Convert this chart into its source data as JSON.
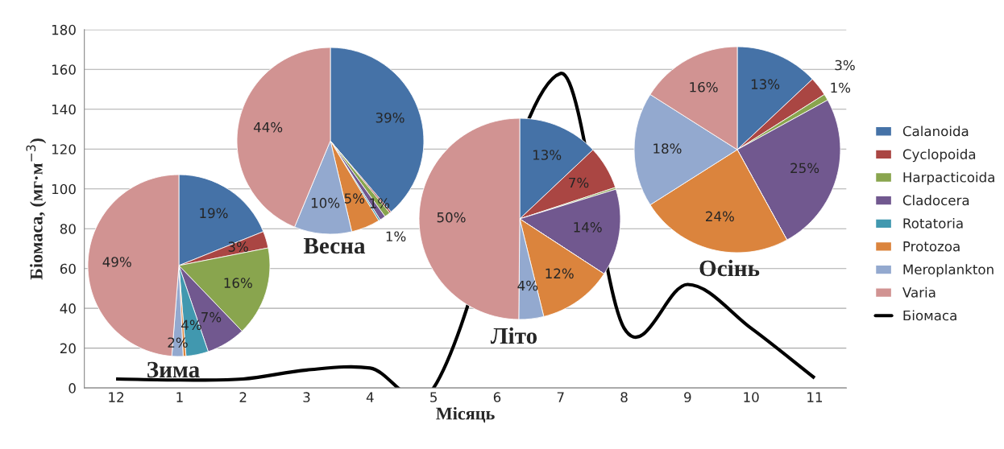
{
  "chart_data": [
    {
      "type": "line",
      "xlabel": "Місяць",
      "ylabel": "Біомаса, (мг·м$^{−3}$)",
      "categories": [
        "12",
        "1",
        "2",
        "3",
        "4",
        "5",
        "6",
        "7",
        "8",
        "9",
        "10",
        "11"
      ],
      "series": [
        {
          "name": "Біомаса",
          "color": "#000000",
          "values": [
            4.5,
            4,
            4.5,
            9,
            10,
            0,
            null,
            158,
            30,
            52,
            30,
            5
          ]
        }
      ],
      "ylim": [
        0,
        180
      ],
      "yticks": [
        0,
        20,
        40,
        60,
        80,
        100,
        120,
        140,
        160,
        180
      ],
      "grid": "y",
      "legend": "right",
      "marker": "none",
      "line_style": "solid"
    },
    {
      "type": "pie",
      "title": "Зима",
      "categories": [
        "Calanoida",
        "Cyclopoida",
        "Harpacticoida",
        "Cladocera",
        "Rotatoria",
        "Protozoa",
        "Meroplankton",
        "Varia"
      ],
      "values": [
        19,
        3,
        16,
        7,
        4,
        0.5,
        2,
        49
      ],
      "value_labels": [
        "19%",
        "3%",
        "16%",
        "7%",
        "4%",
        null,
        "2%",
        "49%"
      ],
      "colors": [
        "#4572a7",
        "#aa4643",
        "#89a54e",
        "#71588f",
        "#4198af",
        "#db843d",
        "#93a9cf",
        "#d19392"
      ],
      "legend": "right"
    },
    {
      "type": "pie",
      "title": "Весна",
      "values": [
        39,
        0.3,
        1,
        1,
        0.3,
        5,
        10,
        44
      ],
      "value_labels": [
        "39%",
        null,
        "1%",
        "1%",
        null,
        "5%",
        "10%",
        "44%"
      ],
      "colors": [
        "#4572a7",
        "#aa4643",
        "#89a54e",
        "#71588f",
        "#4198af",
        "#db843d",
        "#93a9cf",
        "#d19392"
      ]
    },
    {
      "type": "pie",
      "title": "Літо",
      "values": [
        13,
        7,
        0.3,
        14,
        0,
        12,
        4,
        50
      ],
      "value_labels": [
        "13%",
        "7%",
        null,
        "14%",
        null,
        "12%",
        "4%",
        "50%"
      ],
      "colors": [
        "#4572a7",
        "#aa4643",
        "#89a54e",
        "#71588f",
        "#4198af",
        "#db843d",
        "#93a9cf",
        "#d19392"
      ]
    },
    {
      "type": "pie",
      "title": "Осінь",
      "values": [
        13,
        3,
        1,
        25,
        0,
        24,
        18,
        16
      ],
      "value_labels": [
        "13%",
        "3%",
        "1%",
        "25%",
        null,
        "24%",
        "18%",
        "16%"
      ],
      "colors": [
        "#4572a7",
        "#aa4643",
        "#89a54e",
        "#71588f",
        "#4198af",
        "#db843d",
        "#93a9cf",
        "#d19392"
      ]
    }
  ]
}
